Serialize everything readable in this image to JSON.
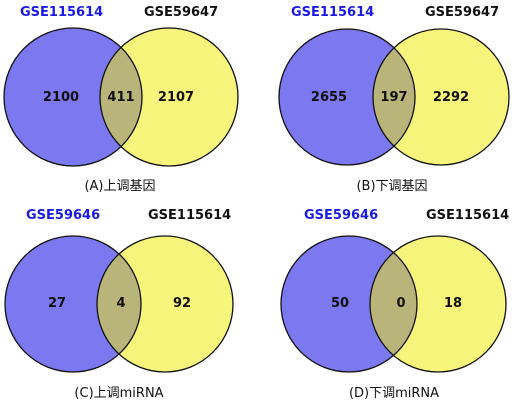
{
  "colors": {
    "left_fill": "#7b78f0",
    "right_fill": "#f6f47a",
    "overlap_fill": "#b9b47a",
    "outline": "#111111",
    "left_label": "#1a1ae6",
    "right_label": "#111111"
  },
  "panels": [
    {
      "set_a": "GSE115614",
      "set_b": "GSE59647",
      "only_a": "2100",
      "both": "411",
      "only_b": "2107",
      "caption": "(A)上调基因"
    },
    {
      "set_a": "GSE115614",
      "set_b": "GSE59647",
      "only_a": "2655",
      "both": "197",
      "only_b": "2292",
      "caption": "(B)下调基因"
    },
    {
      "set_a": "GSE59646",
      "set_b": "GSE115614",
      "only_a": "27",
      "both": "4",
      "only_b": "92",
      "caption": "(C)上调miRNA"
    },
    {
      "set_a": "GSE59646",
      "set_b": "GSE115614",
      "only_a": "50",
      "both": "0",
      "only_b": "18",
      "caption": "(D)下调miRNA"
    }
  ]
}
